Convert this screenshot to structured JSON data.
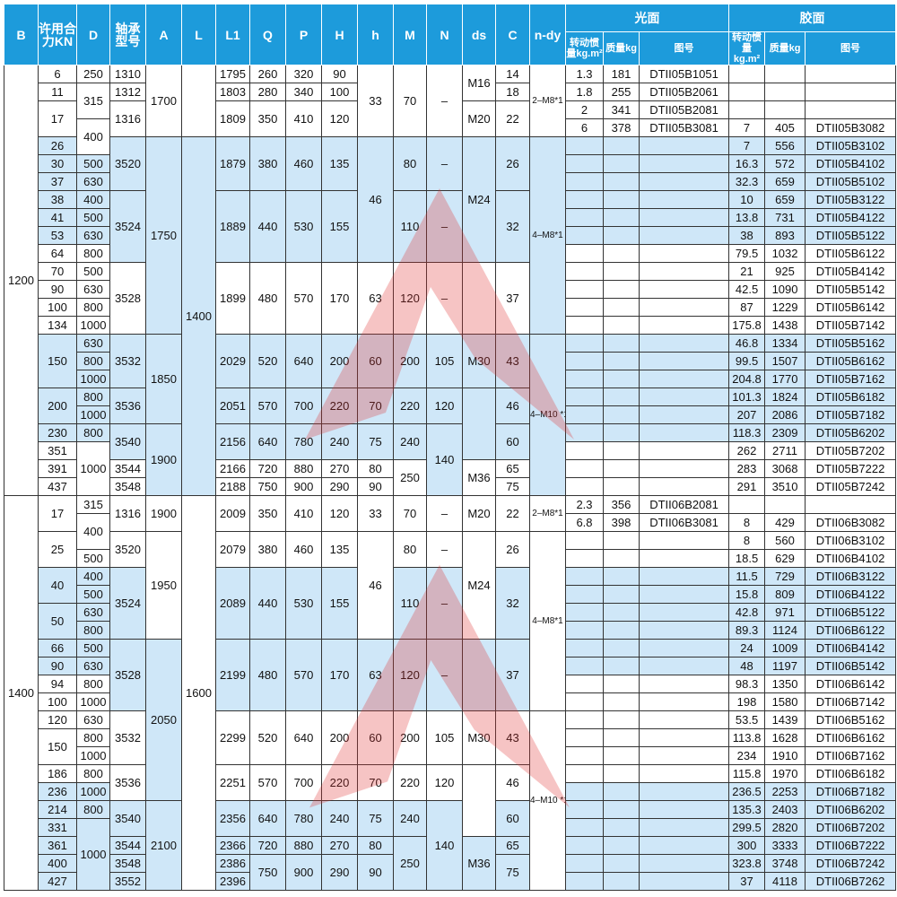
{
  "header": {
    "B": "B",
    "KN": "许用合力KN",
    "D": "D",
    "bearing": "轴承型号",
    "A": "A",
    "L": "L",
    "L1": "L1",
    "Q": "Q",
    "P": "P",
    "H": "H",
    "h": "h",
    "M": "M",
    "N": "N",
    "ds": "ds",
    "C": "C",
    "ndy": "n-dy",
    "glossy": "光面",
    "rubber": "胶面",
    "inertia": "转动惯量kg.m²",
    "mass": "质量kg",
    "drawing": "图号"
  },
  "colors": {
    "header": "#1d9bdb",
    "shade": "#cfe7f8",
    "watermark": "#e03030"
  },
  "rows": [
    {
      "s": false,
      "c": [
        "1200",
        "6",
        "250",
        "1310",
        "1700",
        "",
        "1795",
        "260",
        "320",
        "90",
        "33",
        "70",
        "–",
        "M16",
        "14",
        "2–M8*1",
        "1.3",
        "181",
        "DTII05B1051",
        "",
        "",
        ""
      ]
    },
    {
      "s": false,
      "c": [
        null,
        "11",
        "315",
        "1312",
        null,
        null,
        "1803",
        "280",
        "340",
        "100",
        null,
        null,
        null,
        null,
        "18",
        null,
        "1.8",
        "255",
        "DTII05B2061",
        "",
        "",
        ""
      ]
    },
    {
      "s": false,
      "c": [
        null,
        "17",
        null,
        "1316",
        null,
        null,
        "1809",
        "350",
        "410",
        "120",
        null,
        null,
        null,
        "M20",
        "22",
        null,
        "2",
        "341",
        "DTII05B2081",
        "",
        "",
        ""
      ]
    },
    {
      "s": false,
      "c": [
        null,
        null,
        "400",
        null,
        null,
        null,
        null,
        null,
        null,
        null,
        null,
        null,
        null,
        null,
        null,
        null,
        "6",
        "378",
        "DTII05B3081",
        "7",
        "405",
        "DTII05B3082"
      ]
    },
    {
      "s": true,
      "c": [
        null,
        "26",
        null,
        "3520",
        "1750",
        "1400",
        "1879",
        "380",
        "460",
        "135",
        "46",
        "80",
        "–",
        "M24",
        "26",
        "4–M8*1",
        "",
        "",
        "",
        "7",
        "556",
        "DTII05B3102"
      ]
    },
    {
      "s": true,
      "c": [
        null,
        "30",
        "500",
        null,
        null,
        null,
        null,
        null,
        null,
        null,
        null,
        null,
        null,
        null,
        null,
        null,
        "",
        "",
        "",
        "16.3",
        "572",
        "DTII05B4102"
      ]
    },
    {
      "s": true,
      "c": [
        null,
        "37",
        "630",
        null,
        null,
        null,
        null,
        null,
        null,
        null,
        null,
        null,
        null,
        null,
        null,
        null,
        "",
        "",
        "",
        "32.3",
        "659",
        "DTII05B5102"
      ]
    },
    {
      "s": true,
      "c": [
        null,
        "38",
        "400",
        "3524",
        null,
        null,
        "1889",
        "440",
        "530",
        "155",
        null,
        "110",
        "–",
        null,
        "32",
        null,
        "",
        "",
        "",
        "10",
        "659",
        "DTII05B3122"
      ]
    },
    {
      "s": true,
      "c": [
        null,
        "41",
        "500",
        null,
        null,
        null,
        null,
        null,
        null,
        null,
        null,
        null,
        null,
        null,
        null,
        null,
        "",
        "",
        "",
        "13.8",
        "731",
        "DTII05B4122"
      ]
    },
    {
      "s": true,
      "c": [
        null,
        "53",
        "630",
        null,
        null,
        null,
        null,
        null,
        null,
        null,
        null,
        null,
        null,
        null,
        null,
        null,
        "",
        "",
        "",
        "38",
        "893",
        "DTII05B5122"
      ]
    },
    {
      "s": false,
      "c": [
        null,
        "64",
        "800",
        null,
        null,
        null,
        null,
        null,
        null,
        null,
        null,
        null,
        null,
        null,
        null,
        null,
        "",
        "",
        "",
        "79.5",
        "1032",
        "DTII05B6122"
      ]
    },
    {
      "s": false,
      "c": [
        null,
        "70",
        "500",
        "3528",
        null,
        null,
        "1899",
        "480",
        "570",
        "170",
        "63",
        "120",
        "–",
        "",
        "37",
        null,
        "",
        "",
        "",
        "21",
        "925",
        "DTII05B4142"
      ]
    },
    {
      "s": false,
      "c": [
        null,
        "90",
        "630",
        null,
        null,
        null,
        null,
        null,
        null,
        null,
        null,
        null,
        null,
        null,
        null,
        null,
        "",
        "",
        "",
        "42.5",
        "1090",
        "DTII05B5142"
      ]
    },
    {
      "s": false,
      "c": [
        null,
        "100",
        "800",
        null,
        null,
        null,
        null,
        null,
        null,
        null,
        null,
        null,
        null,
        null,
        null,
        null,
        "",
        "",
        "",
        "87",
        "1229",
        "DTII05B6142"
      ]
    },
    {
      "s": false,
      "c": [
        null,
        "134",
        "1000",
        null,
        null,
        null,
        null,
        null,
        null,
        null,
        null,
        null,
        null,
        null,
        null,
        null,
        "",
        "",
        "",
        "175.8",
        "1438",
        "DTII05B7142"
      ]
    },
    {
      "s": true,
      "c": [
        null,
        "150",
        "630",
        "3532",
        "1850",
        null,
        "2029",
        "520",
        "640",
        "200",
        "60",
        "200",
        "105",
        "M30",
        "43",
        "4–M10 *1",
        "",
        "",
        "",
        "46.8",
        "1334",
        "DTII05B5162"
      ]
    },
    {
      "s": true,
      "c": [
        null,
        null,
        "800",
        null,
        null,
        null,
        null,
        null,
        null,
        null,
        null,
        null,
        null,
        null,
        null,
        null,
        "",
        "",
        "",
        "99.5",
        "1507",
        "DTII05B6162"
      ]
    },
    {
      "s": true,
      "c": [
        null,
        null,
        "1000",
        null,
        null,
        null,
        null,
        null,
        null,
        null,
        null,
        null,
        null,
        null,
        null,
        null,
        "",
        "",
        "",
        "204.8",
        "1770",
        "DTII05B7162"
      ]
    },
    {
      "s": true,
      "c": [
        null,
        "200",
        "800",
        "3536",
        null,
        null,
        "2051",
        "570",
        "700",
        "220",
        "70",
        "220",
        "120",
        "",
        "46",
        null,
        "",
        "",
        "",
        "101.3",
        "1824",
        "DTII05B6182"
      ]
    },
    {
      "s": true,
      "c": [
        null,
        null,
        "1000",
        null,
        null,
        null,
        null,
        null,
        null,
        null,
        null,
        null,
        null,
        null,
        null,
        null,
        "",
        "",
        "",
        "207",
        "2086",
        "DTII05B7182"
      ]
    },
    {
      "s": true,
      "c": [
        null,
        "230",
        "800",
        "3540",
        "1900",
        null,
        "2156",
        "640",
        "780",
        "240",
        "75",
        "240",
        "140",
        null,
        "60",
        null,
        "",
        "",
        "",
        "118.3",
        "2309",
        "DTII05B6202"
      ]
    },
    {
      "s": false,
      "c": [
        null,
        "351",
        "1000",
        null,
        null,
        null,
        null,
        null,
        null,
        null,
        null,
        null,
        null,
        null,
        null,
        null,
        "",
        "",
        "",
        "262",
        "2711",
        "DTII05B7202"
      ]
    },
    {
      "s": false,
      "c": [
        null,
        "391",
        null,
        "3544",
        null,
        null,
        "2166",
        "720",
        "880",
        "270",
        "80",
        "250",
        null,
        "M36",
        "65",
        null,
        "",
        "",
        "",
        "283",
        "3068",
        "DTII05B7222"
      ]
    },
    {
      "s": false,
      "c": [
        null,
        "437",
        null,
        "3548",
        null,
        null,
        "2188",
        "750",
        "900",
        "290",
        "90",
        null,
        null,
        null,
        "75",
        null,
        "",
        "",
        "",
        "291",
        "3510",
        "DTII05B7242"
      ]
    },
    {
      "s": false,
      "c": [
        "1400",
        "17",
        "315",
        "1316",
        "1900",
        "1600",
        "2009",
        "350",
        "410",
        "120",
        "33",
        "70",
        "–",
        "M20",
        "22",
        "2–M8*1",
        "2.3",
        "356",
        "DTII06B2081",
        "",
        "",
        ""
      ]
    },
    {
      "s": false,
      "c": [
        null,
        null,
        "400",
        null,
        null,
        null,
        null,
        null,
        null,
        null,
        null,
        null,
        null,
        null,
        null,
        null,
        "6.8",
        "398",
        "DTII06B3081",
        "8",
        "429",
        "DTII06B3082"
      ]
    },
    {
      "s": false,
      "c": [
        null,
        "25",
        null,
        "3520",
        "1950",
        null,
        "2079",
        "380",
        "460",
        "135",
        "46",
        "80",
        "–",
        "M24",
        "26",
        "4–M8*1",
        "",
        "",
        "",
        "8",
        "560",
        "DTII06B3102"
      ]
    },
    {
      "s": false,
      "c": [
        null,
        null,
        "500",
        null,
        null,
        null,
        null,
        null,
        null,
        null,
        null,
        null,
        null,
        null,
        null,
        null,
        "",
        "",
        "",
        "18.5",
        "629",
        "DTII06B4102"
      ]
    },
    {
      "s": true,
      "c": [
        null,
        "40",
        "400",
        "3524",
        null,
        null,
        "2089",
        "440",
        "530",
        "155",
        null,
        "110",
        "–",
        null,
        "32",
        null,
        "",
        "",
        "",
        "11.5",
        "729",
        "DTII06B3122"
      ]
    },
    {
      "s": true,
      "c": [
        null,
        null,
        "500",
        null,
        null,
        null,
        null,
        null,
        null,
        null,
        null,
        null,
        null,
        null,
        null,
        null,
        "",
        "",
        "",
        "15.8",
        "809",
        "DTII06B4122"
      ]
    },
    {
      "s": true,
      "c": [
        null,
        "50",
        "630",
        null,
        null,
        null,
        null,
        null,
        null,
        null,
        null,
        null,
        null,
        null,
        null,
        null,
        "",
        "",
        "",
        "42.8",
        "971",
        "DTII06B5122"
      ]
    },
    {
      "s": true,
      "c": [
        null,
        null,
        "800",
        null,
        null,
        null,
        null,
        null,
        null,
        null,
        null,
        null,
        null,
        null,
        null,
        null,
        "",
        "",
        "",
        "89.3",
        "1124",
        "DTII06B6122"
      ]
    },
    {
      "s": true,
      "c": [
        null,
        "66",
        "500",
        "3528",
        "2050",
        null,
        "2199",
        "480",
        "570",
        "170",
        "63",
        "120",
        "–",
        "",
        "37",
        null,
        "",
        "",
        "",
        "24",
        "1009",
        "DTII06B4142"
      ]
    },
    {
      "s": true,
      "c": [
        null,
        "90",
        "630",
        null,
        null,
        null,
        null,
        null,
        null,
        null,
        null,
        null,
        null,
        null,
        null,
        null,
        "",
        "",
        "",
        "48",
        "1197",
        "DTII06B5142"
      ]
    },
    {
      "s": false,
      "c": [
        null,
        "94",
        "800",
        null,
        null,
        null,
        null,
        null,
        null,
        null,
        null,
        null,
        null,
        null,
        null,
        null,
        "",
        "",
        "",
        "98.3",
        "1350",
        "DTII06B6142"
      ]
    },
    {
      "s": false,
      "c": [
        null,
        "100",
        "1000",
        null,
        null,
        null,
        null,
        null,
        null,
        null,
        null,
        null,
        null,
        null,
        null,
        null,
        "",
        "",
        "",
        "198",
        "1580",
        "DTII06B7142"
      ]
    },
    {
      "s": false,
      "c": [
        null,
        "120",
        "630",
        "3532",
        null,
        null,
        "2299",
        "520",
        "640",
        "200",
        "60",
        "200",
        "105",
        "M30",
        "43",
        "4–M10 *1",
        "",
        "",
        "",
        "53.5",
        "1439",
        "DTII06B5162"
      ]
    },
    {
      "s": false,
      "c": [
        null,
        "150",
        "800",
        null,
        null,
        null,
        null,
        null,
        null,
        null,
        null,
        null,
        null,
        null,
        null,
        null,
        "",
        "",
        "",
        "113.8",
        "1628",
        "DTII06B6162"
      ]
    },
    {
      "s": false,
      "c": [
        null,
        null,
        "1000",
        null,
        null,
        null,
        null,
        null,
        null,
        null,
        null,
        null,
        null,
        null,
        null,
        null,
        "",
        "",
        "",
        "234",
        "1910",
        "DTII06B7162"
      ]
    },
    {
      "s": false,
      "c": [
        null,
        "186",
        "800",
        "3536",
        null,
        null,
        "2251",
        "570",
        "700",
        "220",
        "70",
        "220",
        "120",
        "",
        "46",
        null,
        "",
        "",
        "",
        "115.8",
        "1970",
        "DTII06B6182"
      ]
    },
    {
      "s": true,
      "c": [
        null,
        "236",
        "1000",
        null,
        null,
        null,
        null,
        null,
        null,
        null,
        null,
        null,
        null,
        null,
        null,
        null,
        "",
        "",
        "",
        "236.5",
        "2253",
        "DTII06B7182"
      ]
    },
    {
      "s": true,
      "c": [
        null,
        "214",
        "800",
        "3540",
        "2100",
        null,
        "2356",
        "640",
        "780",
        "240",
        "75",
        "240",
        "140",
        null,
        "60",
        null,
        "",
        "",
        "",
        "135.3",
        "2403",
        "DTII06B6202"
      ]
    },
    {
      "s": true,
      "c": [
        null,
        "331",
        "1000",
        null,
        null,
        null,
        null,
        null,
        null,
        null,
        null,
        null,
        null,
        null,
        null,
        null,
        "",
        "",
        "",
        "299.5",
        "2820",
        "DTII06B7202"
      ]
    },
    {
      "s": true,
      "c": [
        null,
        "361",
        null,
        "3544",
        null,
        null,
        "2366",
        "720",
        "880",
        "270",
        "80",
        "250",
        null,
        "M36",
        "65",
        null,
        "",
        "",
        "",
        "300",
        "3333",
        "DTII06B7222"
      ]
    },
    {
      "s": true,
      "c": [
        null,
        "400",
        null,
        "3548",
        null,
        null,
        "2386",
        "750",
        "900",
        "290",
        "90",
        null,
        null,
        null,
        "75",
        null,
        "",
        "",
        "",
        "323.8",
        "3748",
        "DTII06B7242"
      ]
    },
    {
      "s": true,
      "c": [
        null,
        "427",
        null,
        "3552",
        null,
        null,
        "2396",
        null,
        null,
        null,
        null,
        null,
        null,
        null,
        null,
        null,
        "",
        "",
        "",
        "37",
        "4118",
        "DTII06B7262"
      ]
    }
  ]
}
